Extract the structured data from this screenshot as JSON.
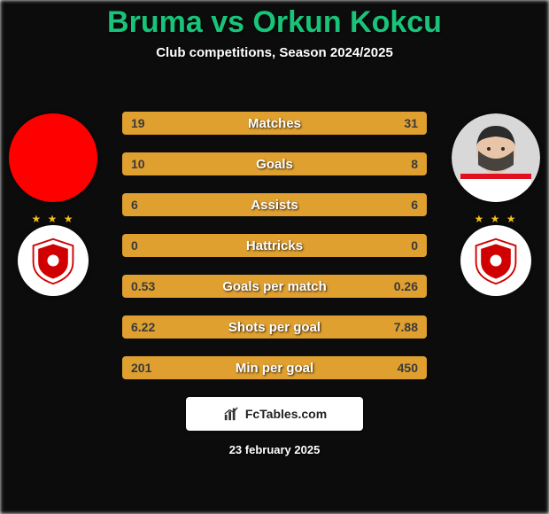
{
  "title": {
    "player1_name": "Bruma",
    "vs_text": "vs",
    "player2_name": "Orkun Kokcu",
    "player1_color": "#18c47a",
    "vs_color": "#18c47a",
    "player2_color": "#18c47a"
  },
  "subtitle": "Club competitions, Season 2024/2025",
  "avatars": {
    "left_bg": "#ff0000",
    "right_face_skin": "#e8c5a8",
    "right_shirt": "#ffffff",
    "right_shirt_accent": "#e01020"
  },
  "club_badge": {
    "shield_fill": "#ffffff",
    "shield_stroke": "#d00000",
    "inner_fill": "#d00000",
    "star_color": "#f0c020"
  },
  "stats": {
    "row_color": "#e0a030",
    "rows": [
      {
        "label": "Matches",
        "left": "19",
        "right": "31"
      },
      {
        "label": "Goals",
        "left": "10",
        "right": "8"
      },
      {
        "label": "Assists",
        "left": "6",
        "right": "6"
      },
      {
        "label": "Hattricks",
        "left": "0",
        "right": "0"
      },
      {
        "label": "Goals per match",
        "left": "0.53",
        "right": "0.26"
      },
      {
        "label": "Shots per goal",
        "left": "6.22",
        "right": "7.88"
      },
      {
        "label": "Min per goal",
        "left": "201",
        "right": "450"
      }
    ]
  },
  "footer": {
    "brand": "FcTables.com",
    "date": "23 february 2025"
  },
  "background_color": "#2a2a2a"
}
